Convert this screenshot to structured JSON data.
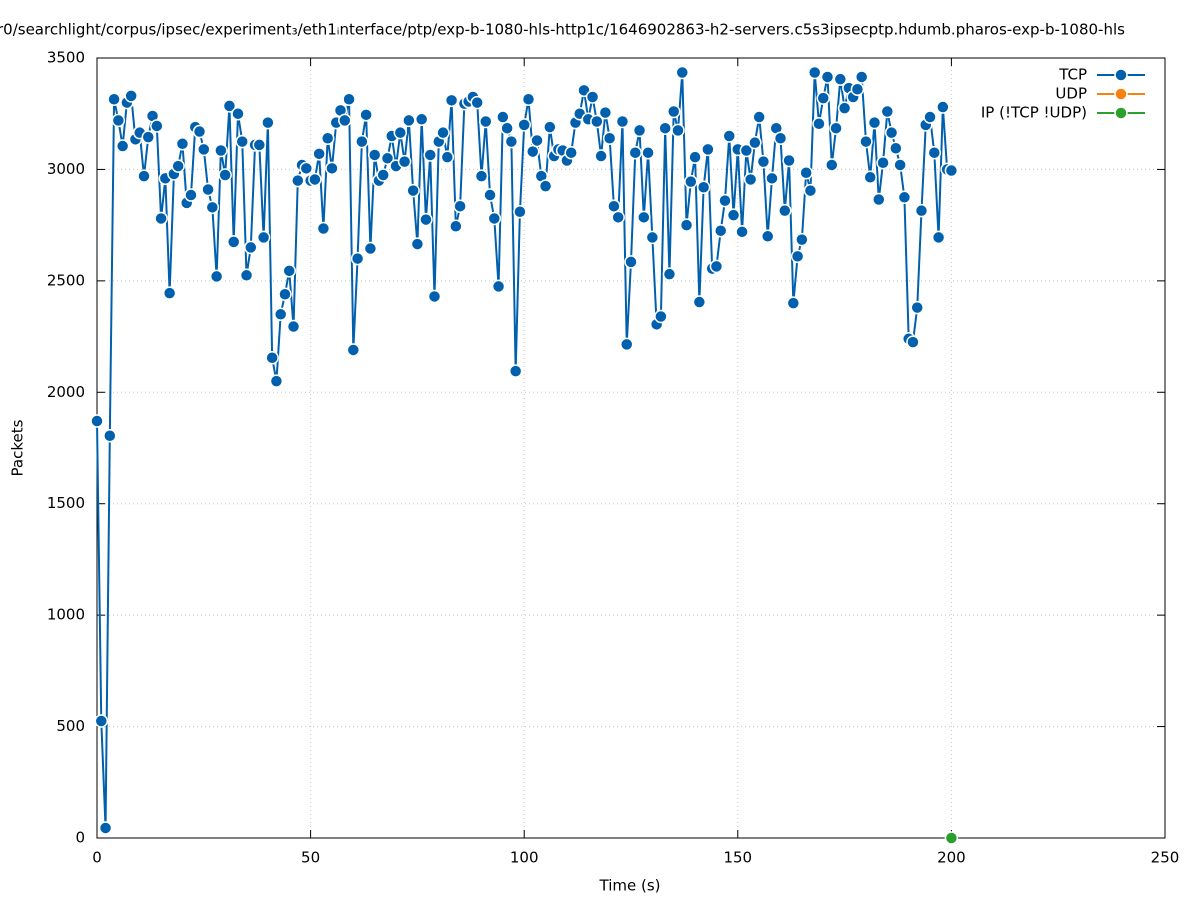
{
  "chart_data": {
    "type": "line",
    "title": "r0/searchlight/corpus/ipsec/experiment₃/eth1ᵢnterface/ptp/exp-b-1080-hls-http1c/1646902863-h2-servers.c5s3ipsecptp.hdumb.pharos-exp-b-1080-hls",
    "x_label": "Time (s)",
    "y_label": "Packets",
    "xlim": [
      0,
      250
    ],
    "xticks": [
      0,
      50,
      100,
      150,
      200,
      250
    ],
    "ylim": [
      0,
      3500
    ],
    "yticks": [
      0,
      500,
      1000,
      1500,
      2000,
      2500,
      3000,
      3500
    ],
    "grid": true,
    "legend": "top-right",
    "series": [
      {
        "name": "TCP",
        "color": "#0060ad",
        "x": [
          0,
          1,
          2,
          3,
          4,
          5,
          6,
          7,
          8,
          9,
          10,
          11,
          12,
          13,
          14,
          15,
          16,
          17,
          18,
          19,
          20,
          21,
          22,
          23,
          24,
          25,
          26,
          27,
          28,
          29,
          30,
          31,
          32,
          33,
          34,
          35,
          36,
          37,
          38,
          39,
          40,
          41,
          42,
          43,
          44,
          45,
          46,
          47,
          48,
          49,
          50,
          51,
          52,
          53,
          54,
          55,
          56,
          57,
          58,
          59,
          60,
          61,
          62,
          63,
          64,
          65,
          66,
          67,
          68,
          69,
          70,
          71,
          72,
          73,
          74,
          75,
          76,
          77,
          78,
          79,
          80,
          81,
          82,
          83,
          84,
          85,
          86,
          87,
          88,
          89,
          90,
          91,
          92,
          93,
          94,
          95,
          96,
          97,
          98,
          99,
          100,
          101,
          102,
          103,
          104,
          105,
          106,
          107,
          108,
          109,
          110,
          111,
          112,
          113,
          114,
          115,
          116,
          117,
          118,
          119,
          120,
          121,
          122,
          123,
          124,
          125,
          126,
          127,
          128,
          129,
          130,
          131,
          132,
          133,
          134,
          135,
          136,
          137,
          138,
          139,
          140,
          141,
          142,
          143,
          144,
          145,
          146,
          147,
          148,
          149,
          150,
          151,
          152,
          153,
          154,
          155,
          156,
          157,
          158,
          159,
          160,
          161,
          162,
          163,
          164,
          165,
          166,
          167,
          168,
          169,
          170,
          171,
          172,
          173,
          174,
          175,
          176,
          177,
          178,
          179,
          180,
          181,
          182,
          183,
          184,
          185,
          186,
          187,
          188,
          189,
          190,
          191,
          192,
          193,
          194,
          195,
          196,
          197,
          198,
          199,
          200
        ],
        "values": [
          1871,
          525,
          45,
          1805,
          3315,
          3220,
          3105,
          3300,
          3330,
          3135,
          3165,
          2970,
          3145,
          3240,
          3195,
          2780,
          2960,
          2445,
          2980,
          3015,
          3115,
          2850,
          2885,
          3190,
          3170,
          3090,
          2910,
          2830,
          2520,
          3085,
          2975,
          3285,
          2675,
          3250,
          3125,
          2525,
          2650,
          3110,
          3110,
          2695,
          3210,
          2155,
          2050,
          2350,
          2440,
          2545,
          2295,
          2950,
          3020,
          3005,
          2950,
          2955,
          3070,
          2735,
          3140,
          3005,
          3210,
          3265,
          3220,
          3315,
          2190,
          2600,
          3125,
          3245,
          2645,
          3065,
          2950,
          2975,
          3050,
          3150,
          3015,
          3165,
          3035,
          3220,
          2905,
          2665,
          3225,
          2775,
          3065,
          2430,
          3125,
          3165,
          3055,
          3310,
          2745,
          2835,
          3295,
          3305,
          3325,
          3300,
          2970,
          3215,
          2885,
          2780,
          2475,
          3235,
          3185,
          3125,
          2095,
          2810,
          3200,
          3315,
          3080,
          3130,
          2970,
          2925,
          3190,
          3060,
          3090,
          3085,
          3040,
          3075,
          3210,
          3250,
          3355,
          3225,
          3325,
          3215,
          3060,
          3255,
          3140,
          2835,
          2785,
          3215,
          2215,
          2585,
          3075,
          3175,
          2785,
          3075,
          2695,
          2305,
          2340,
          3185,
          2530,
          3260,
          3175,
          3435,
          2750,
          2945,
          3055,
          2405,
          2920,
          3090,
          2555,
          2565,
          2725,
          2860,
          3150,
          2795,
          3090,
          2720,
          3085,
          2955,
          3120,
          3235,
          3035,
          2700,
          2960,
          3185,
          3140,
          2815,
          3040,
          2400,
          2610,
          2685,
          2985,
          2905,
          3435,
          3205,
          3320,
          3415,
          3020,
          3185,
          3405,
          3275,
          3365,
          3325,
          3360,
          3415,
          3125,
          2965,
          3210,
          2865,
          3030,
          3260,
          3165,
          3095,
          3020,
          2875,
          2240,
          2225,
          2380,
          2815,
          3200,
          3235,
          3075,
          2695,
          3280,
          3000,
          2995
        ]
      },
      {
        "name": "UDP",
        "color": "#f7820d",
        "x": [],
        "values": []
      },
      {
        "name": "IP (!TCP  !UDP)",
        "color": "#2ca02c",
        "x": [
          200
        ],
        "values": [
          0
        ]
      }
    ]
  }
}
